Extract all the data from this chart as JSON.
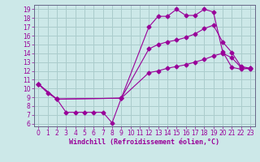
{
  "title": "",
  "xlabel": "Windchill (Refroidissement éolien,°C)",
  "bg_color": "#cce8e8",
  "line_color": "#990099",
  "grid_color": "#aacccc",
  "xlim": [
    -0.5,
    23.5
  ],
  "ylim": [
    5.7,
    19.5
  ],
  "xticks": [
    0,
    1,
    2,
    3,
    4,
    5,
    6,
    7,
    8,
    9,
    10,
    11,
    12,
    13,
    14,
    15,
    16,
    17,
    18,
    19,
    20,
    21,
    22,
    23
  ],
  "yticks": [
    6,
    7,
    8,
    9,
    10,
    11,
    12,
    13,
    14,
    15,
    16,
    17,
    18,
    19
  ],
  "line1_x": [
    0,
    1,
    2,
    3,
    4,
    5,
    6,
    7,
    8,
    9,
    12,
    13,
    14,
    15,
    16,
    17,
    18,
    19,
    20,
    21,
    22,
    23
  ],
  "line1_y": [
    10.5,
    9.5,
    8.8,
    7.3,
    7.3,
    7.3,
    7.3,
    7.3,
    6.1,
    8.9,
    17.0,
    18.2,
    18.2,
    19.0,
    18.3,
    18.3,
    19.0,
    18.7,
    14.2,
    12.4,
    12.2,
    12.3
  ],
  "line2_x": [
    0,
    2,
    9,
    12,
    13,
    14,
    15,
    16,
    17,
    18,
    19,
    20,
    21,
    22,
    23
  ],
  "line2_y": [
    10.5,
    8.8,
    8.9,
    14.5,
    15.0,
    15.3,
    15.5,
    15.8,
    16.2,
    16.8,
    17.2,
    15.3,
    14.1,
    12.5,
    12.3
  ],
  "line3_x": [
    0,
    2,
    9,
    12,
    13,
    14,
    15,
    16,
    17,
    18,
    19,
    20,
    21,
    22,
    23
  ],
  "line3_y": [
    10.5,
    8.8,
    8.9,
    11.8,
    12.0,
    12.3,
    12.5,
    12.7,
    13.0,
    13.3,
    13.7,
    14.0,
    13.5,
    12.4,
    12.2
  ],
  "spine_color": "#666688",
  "tick_fontsize": 5.5,
  "xlabel_fontsize": 6.0
}
